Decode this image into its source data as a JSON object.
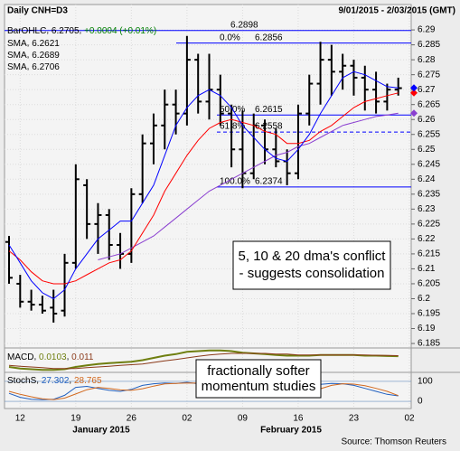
{
  "chart_data": {
    "type": "ohlc",
    "title": "Daily CNH=D3",
    "subtitle": "9/01/2015 - 2/03/2015 (GMT)",
    "source": "Source: Thomson Reuters",
    "categories": [
      null,
      "12",
      null,
      null,
      null,
      null,
      "19",
      null,
      null,
      null,
      null,
      "26",
      null,
      null,
      null,
      null,
      "02",
      null,
      null,
      null,
      null,
      "09",
      null,
      null,
      null,
      null,
      "16",
      null,
      null,
      null,
      null,
      "23",
      null,
      null,
      null,
      null,
      "02"
    ],
    "month_labels": [
      "January 2015",
      "February 2015"
    ],
    "ohlc": {
      "name": "BarOHLC",
      "color": "#000000",
      "open": [
        6.219,
        6.205,
        6.199,
        6.198,
        6.197,
        6.196,
        6.212,
        6.238,
        6.225,
        6.228,
        6.218,
        6.215,
        6.235,
        6.252,
        6.258,
        6.265,
        6.262,
        6.28,
        6.266,
        6.27,
        6.262,
        6.25,
        6.242,
        6.258,
        6.25,
        6.246,
        6.242,
        6.262,
        6.272,
        6.28,
        6.276,
        6.278,
        6.274,
        6.27,
        6.266,
        6.27,
        null
      ],
      "high": [
        6.221,
        6.208,
        6.203,
        6.201,
        6.203,
        6.215,
        6.245,
        6.24,
        6.232,
        6.23,
        6.222,
        6.237,
        6.255,
        6.262,
        6.27,
        6.27,
        6.288,
        6.282,
        6.282,
        6.275,
        6.265,
        6.263,
        6.262,
        6.26,
        6.257,
        6.25,
        6.265,
        6.275,
        6.286,
        6.285,
        6.282,
        6.28,
        6.278,
        6.276,
        6.272,
        6.274,
        null
      ],
      "low": [
        6.205,
        6.197,
        6.196,
        6.195,
        6.192,
        6.194,
        6.21,
        6.22,
        6.215,
        6.213,
        6.21,
        6.212,
        6.232,
        6.245,
        6.25,
        6.255,
        6.258,
        6.262,
        6.26,
        6.258,
        6.244,
        6.237,
        6.24,
        6.245,
        6.244,
        6.238,
        6.24,
        6.258,
        6.265,
        6.268,
        6.27,
        6.268,
        6.263,
        6.262,
        6.263,
        6.268,
        null
      ],
      "close": [
        6.207,
        6.199,
        6.198,
        6.196,
        6.195,
        6.212,
        6.24,
        6.225,
        6.228,
        6.218,
        6.215,
        6.235,
        6.252,
        6.258,
        6.265,
        6.262,
        6.28,
        6.266,
        6.27,
        6.262,
        6.25,
        6.242,
        6.258,
        6.25,
        6.246,
        6.242,
        6.262,
        6.272,
        6.28,
        6.276,
        6.278,
        6.274,
        6.27,
        6.266,
        6.27,
        6.2705,
        null
      ],
      "change": 0.0004,
      "change_label": "+0.0004",
      "change_pct": 0.01,
      "change_pct_label": "(+0.01%)"
    },
    "sma": [
      {
        "name": "SMA",
        "color": "#8a3fd0",
        "values": [
          null,
          null,
          null,
          null,
          null,
          null,
          null,
          null,
          6.213,
          6.214,
          6.215,
          6.217,
          6.219,
          6.221,
          6.224,
          6.227,
          6.23,
          6.233,
          6.236,
          6.238,
          6.24,
          6.242,
          6.244,
          6.246,
          6.248,
          6.249,
          6.251,
          6.252,
          6.254,
          6.256,
          6.258,
          6.259,
          6.26,
          6.261,
          6.2615,
          6.2621,
          null
        ]
      },
      {
        "name": "SMA",
        "color": "#ff0000",
        "values": [
          6.216,
          6.213,
          6.209,
          6.206,
          6.205,
          6.205,
          6.206,
          6.208,
          6.21,
          6.212,
          6.213,
          6.216,
          6.222,
          6.228,
          6.236,
          6.242,
          6.248,
          6.253,
          6.257,
          6.259,
          6.26,
          6.259,
          6.258,
          6.256,
          6.255,
          6.252,
          6.252,
          6.253,
          6.256,
          6.258,
          6.261,
          6.264,
          6.266,
          6.267,
          6.268,
          6.2689,
          null
        ]
      },
      {
        "name": "SMA",
        "color": "#0000ff",
        "values": [
          6.218,
          6.212,
          6.206,
          6.202,
          6.2,
          6.203,
          6.21,
          6.215,
          6.22,
          6.223,
          6.226,
          6.226,
          6.232,
          6.238,
          6.248,
          6.258,
          6.264,
          6.268,
          6.27,
          6.268,
          6.264,
          6.258,
          6.254,
          6.25,
          6.247,
          6.246,
          6.25,
          6.255,
          6.262,
          6.268,
          6.274,
          6.276,
          6.275,
          6.273,
          6.271,
          6.2706,
          null
        ]
      }
    ],
    "ylim": [
      6.1835,
      6.2985
    ],
    "yticks": [
      6.185,
      6.19,
      6.195,
      6.2,
      6.205,
      6.21,
      6.215,
      6.22,
      6.225,
      6.23,
      6.235,
      6.24,
      6.245,
      6.25,
      6.255,
      6.26,
      6.265,
      6.27,
      6.275,
      6.28,
      6.285,
      6.29
    ],
    "fib_top": 6.2898,
    "fib_levels": [
      {
        "label": "0.0%",
        "value": 6.2856
      },
      {
        "label": "50.0%",
        "value": 6.2615
      },
      {
        "label": "61.8%",
        "value": 6.2558
      },
      {
        "label": "100.0%",
        "value": 6.2374
      }
    ],
    "annotations": [
      {
        "lines": [
          "5, 10 & 20 dma's conflict",
          "- suggests consolidation"
        ]
      },
      {
        "lines": [
          "fractionally softer",
          "momentum studies"
        ]
      }
    ],
    "macd": {
      "name": "MACD",
      "ylim": [
        -0.01,
        0.02
      ],
      "series": [
        {
          "color": "#6f7f10",
          "values": [
            -0.004,
            -0.006,
            -0.007,
            -0.008,
            -0.008,
            -0.007,
            -0.004,
            -0.002,
            0,
            0.001,
            0.002,
            0.003,
            0.005,
            0.008,
            0.011,
            0.013,
            0.016,
            0.017,
            0.018,
            0.018,
            0.017,
            0.015,
            0.014,
            0.013,
            0.012,
            0.011,
            0.011,
            0.011,
            0.012,
            0.012,
            0.012,
            0.012,
            0.011,
            0.011,
            0.0105,
            0.0103,
            null
          ]
        },
        {
          "color": "#8b3a1a",
          "values": [
            -0.002,
            -0.003,
            -0.004,
            -0.005,
            -0.006,
            -0.006,
            -0.006,
            -0.005,
            -0.004,
            -0.003,
            -0.002,
            -0.001,
            0,
            0.002,
            0.004,
            0.006,
            0.008,
            0.01,
            0.012,
            0.013,
            0.014,
            0.014,
            0.014,
            0.014,
            0.013,
            0.013,
            0.012,
            0.012,
            0.012,
            0.012,
            0.012,
            0.012,
            0.012,
            0.0115,
            0.0112,
            0.011,
            null
          ]
        }
      ]
    },
    "stoch": {
      "name": "StochS",
      "ylim": [
        -36,
        145
      ],
      "yticks": [
        0,
        100
      ],
      "series": [
        {
          "color": "#1f5fbf",
          "values": [
            40,
            20,
            10,
            8,
            10,
            30,
            70,
            75,
            65,
            55,
            50,
            60,
            80,
            88,
            92,
            90,
            95,
            88,
            80,
            70,
            55,
            35,
            30,
            35,
            30,
            25,
            40,
            65,
            85,
            90,
            88,
            80,
            65,
            50,
            35,
            27.302,
            null
          ]
        },
        {
          "color": "#d2691e",
          "values": [
            50,
            35,
            23,
            13,
            9,
            16,
            37,
            58,
            70,
            65,
            57,
            55,
            63,
            76,
            87,
            90,
            92,
            91,
            88,
            79,
            68,
            53,
            40,
            33,
            32,
            30,
            32,
            43,
            63,
            80,
            88,
            86,
            78,
            65,
            50,
            28.765,
            null
          ]
        }
      ]
    }
  }
}
